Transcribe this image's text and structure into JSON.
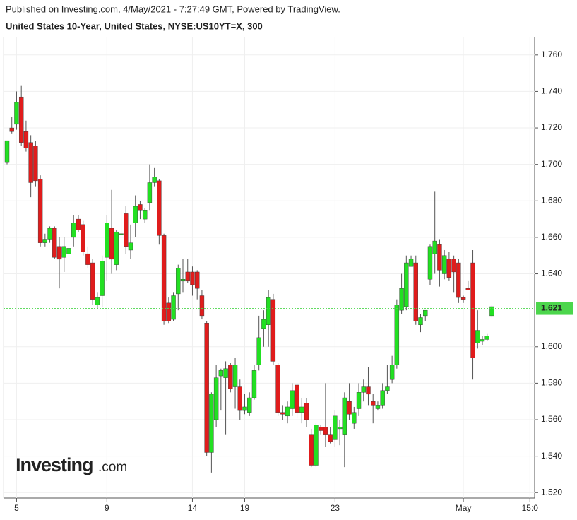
{
  "header": {
    "published": "Published on Investing.com, 4/May/2021 - 7:27:49 GMT, Powered by TradingView.",
    "instrument": "United States 10-Year, United States, NYSE:US10YT=X, 300"
  },
  "watermark": {
    "brand": "Investing",
    "suffix": ".com"
  },
  "chart_data": {
    "type": "candlestick",
    "categories": [
      null,
      null,
      "5",
      null,
      null,
      null,
      null,
      null,
      null,
      null,
      null,
      null,
      null,
      null,
      null,
      null,
      null,
      null,
      null,
      null,
      null,
      "9",
      null,
      null,
      null,
      null,
      null,
      null,
      null,
      null,
      null,
      null,
      null,
      null,
      null,
      null,
      null,
      null,
      null,
      "14",
      null,
      null,
      null,
      null,
      null,
      null,
      null,
      null,
      null,
      null,
      "19",
      null,
      null,
      null,
      null,
      null,
      null,
      null,
      null,
      null,
      null,
      null,
      null,
      null,
      null,
      null,
      null,
      null,
      null,
      "23",
      null,
      null,
      null,
      null,
      null,
      null,
      null,
      null,
      null,
      null,
      null,
      null,
      null,
      null,
      null,
      null,
      null,
      null,
      null,
      null,
      null,
      null,
      null,
      null,
      null,
      null,
      "May",
      null,
      null,
      null,
      null,
      null,
      null,
      null,
      null,
      null,
      null,
      null,
      null,
      null,
      "15:0"
    ],
    "series": [
      {
        "name": "US10YT=X",
        "open": [
          1.701,
          1.72,
          1.722,
          1.737,
          1.718,
          1.712,
          1.71,
          1.692,
          1.657,
          1.659,
          1.665,
          1.655,
          1.649,
          1.651,
          1.66,
          1.67,
          1.667,
          1.651,
          1.646,
          1.623,
          1.628,
          1.649,
          1.665,
          1.645,
          1.662,
          1.673,
          1.653,
          1.668,
          1.678,
          1.67,
          1.679,
          1.69,
          1.691,
          1.661,
          1.624,
          1.615,
          1.629,
          1.636,
          1.641,
          1.641,
          1.641,
          1.628,
          1.613,
          1.542,
          1.56,
          1.584,
          1.583,
          1.59,
          1.578,
          1.578,
          1.565,
          1.564,
          1.572,
          1.59,
          1.61,
          1.612,
          1.626,
          1.59,
          1.564,
          1.562,
          1.566,
          1.579,
          1.564,
          1.569,
          1.552,
          1.535,
          1.556,
          1.556,
          1.552,
          1.549,
          1.555,
          1.552,
          1.57,
          1.558,
          1.566,
          1.575,
          1.578,
          1.57,
          1.566,
          1.568,
          1.576,
          1.582,
          1.59,
          1.62,
          1.622,
          1.644,
          1.646,
          1.612,
          1.617,
          1.637,
          1.651,
          1.656,
          1.64,
          1.648,
          1.648,
          1.646,
          1.627,
          1.632,
          1.646,
          1.602,
          1.603,
          1.604,
          1.617,
          null,
          null,
          null,
          null,
          null,
          null,
          null,
          null
        ],
        "high": [
          1.713,
          1.726,
          1.74,
          1.743,
          1.724,
          1.716,
          1.713,
          1.694,
          1.662,
          1.666,
          1.666,
          1.66,
          1.66,
          1.663,
          1.672,
          1.672,
          1.669,
          1.655,
          1.648,
          1.63,
          1.65,
          1.672,
          1.686,
          1.664,
          1.675,
          1.677,
          1.667,
          1.683,
          1.68,
          1.676,
          1.7,
          1.698,
          1.692,
          1.662,
          1.627,
          1.63,
          1.645,
          1.648,
          1.648,
          1.644,
          1.642,
          1.631,
          1.614,
          1.575,
          1.59,
          1.588,
          1.592,
          1.591,
          1.594,
          1.582,
          1.574,
          1.575,
          1.59,
          1.617,
          1.62,
          1.631,
          1.629,
          1.591,
          1.568,
          1.57,
          1.58,
          1.58,
          1.572,
          1.572,
          1.555,
          1.558,
          1.557,
          1.58,
          1.556,
          1.565,
          1.56,
          1.575,
          1.58,
          1.567,
          1.58,
          1.582,
          1.589,
          1.574,
          1.57,
          1.58,
          1.59,
          1.595,
          1.626,
          1.64,
          1.65,
          1.65,
          1.65,
          1.618,
          1.62,
          1.656,
          1.685,
          1.659,
          1.653,
          1.652,
          1.65,
          1.648,
          1.628,
          1.636,
          1.653,
          1.62,
          1.606,
          1.607,
          1.623,
          null,
          null,
          null,
          null,
          null,
          null,
          null,
          null
        ],
        "low": [
          1.7,
          1.717,
          1.719,
          1.71,
          1.707,
          1.682,
          1.688,
          1.655,
          1.655,
          1.657,
          1.648,
          1.632,
          1.641,
          1.64,
          1.655,
          1.663,
          1.65,
          1.643,
          1.623,
          1.621,
          1.622,
          1.636,
          1.64,
          1.642,
          1.661,
          1.651,
          1.648,
          1.66,
          1.67,
          1.668,
          1.675,
          1.688,
          1.656,
          1.612,
          1.613,
          1.614,
          1.62,
          1.63,
          1.635,
          1.628,
          1.626,
          1.615,
          1.54,
          1.531,
          1.556,
          1.565,
          1.552,
          1.575,
          1.566,
          1.56,
          1.563,
          1.562,
          1.571,
          1.587,
          1.6,
          1.6,
          1.59,
          1.562,
          1.56,
          1.558,
          1.562,
          1.561,
          1.558,
          1.556,
          1.534,
          1.534,
          1.552,
          1.545,
          1.547,
          1.545,
          1.546,
          1.534,
          1.56,
          1.555,
          1.562,
          1.57,
          1.568,
          1.558,
          1.565,
          1.566,
          1.574,
          1.58,
          1.588,
          1.618,
          1.62,
          1.644,
          1.612,
          1.608,
          1.614,
          1.634,
          1.64,
          1.633,
          1.637,
          1.636,
          1.63,
          1.624,
          1.624,
          1.631,
          1.582,
          1.599,
          1.601,
          1.603,
          1.616,
          null,
          null,
          null,
          null,
          null,
          null,
          null,
          null
        ],
        "close": [
          1.713,
          1.718,
          1.734,
          1.712,
          1.709,
          1.69,
          1.691,
          1.657,
          1.659,
          1.665,
          1.649,
          1.648,
          1.655,
          1.654,
          1.668,
          1.664,
          1.652,
          1.645,
          1.626,
          1.627,
          1.647,
          1.668,
          1.648,
          1.663,
          1.662,
          1.655,
          1.657,
          1.677,
          1.675,
          1.675,
          1.69,
          1.693,
          1.661,
          1.614,
          1.614,
          1.628,
          1.643,
          1.637,
          1.636,
          1.634,
          1.632,
          1.617,
          1.542,
          1.574,
          1.583,
          1.587,
          1.588,
          1.577,
          1.59,
          1.565,
          1.567,
          1.572,
          1.587,
          1.605,
          1.615,
          1.627,
          1.592,
          1.564,
          1.563,
          1.567,
          1.576,
          1.564,
          1.567,
          1.56,
          1.535,
          1.557,
          1.554,
          1.552,
          1.548,
          1.562,
          1.556,
          1.572,
          1.563,
          1.564,
          1.575,
          1.578,
          1.574,
          1.568,
          1.568,
          1.576,
          1.578,
          1.59,
          1.623,
          1.632,
          1.646,
          1.648,
          1.614,
          1.616,
          1.62,
          1.655,
          1.658,
          1.642,
          1.65,
          1.638,
          1.641,
          1.627,
          1.626,
          1.631,
          1.594,
          1.609,
          1.604,
          1.606,
          1.622,
          null,
          null,
          null,
          null,
          null,
          null,
          null,
          null
        ]
      }
    ],
    "up_color": "#22e022",
    "down_color": "#e01c1c",
    "wick_color": "#555555",
    "last_price": 1.621,
    "last_price_color": "#4cd64c",
    "ylim": [
      1.517,
      1.77
    ],
    "yticks": [
      {
        "value": 1.52,
        "label": "1.520"
      },
      {
        "value": 1.54,
        "label": "1.540"
      },
      {
        "value": 1.56,
        "label": "1.560"
      },
      {
        "value": 1.58,
        "label": "1.580"
      },
      {
        "value": 1.6,
        "label": "1.600"
      },
      {
        "value": 1.64,
        "label": "1.640"
      },
      {
        "value": 1.66,
        "label": "1.660"
      },
      {
        "value": 1.68,
        "label": "1.680"
      },
      {
        "value": 1.7,
        "label": "1.700"
      },
      {
        "value": 1.72,
        "label": "1.720"
      },
      {
        "value": 1.74,
        "label": "1.740"
      },
      {
        "value": 1.76,
        "label": "1.760"
      }
    ],
    "grid": true
  }
}
